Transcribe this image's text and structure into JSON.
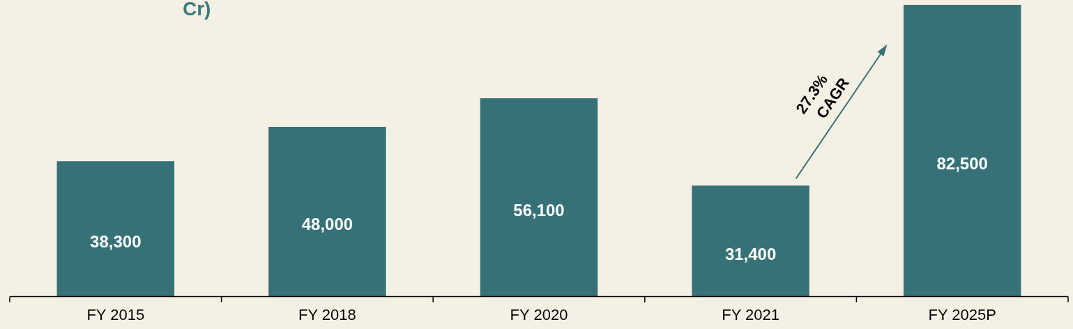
{
  "chart_data": {
    "type": "bar",
    "title": "Cr)",
    "categories": [
      "FY 2015",
      "FY 2018",
      "FY 2020",
      "FY 2021",
      "FY 2025P"
    ],
    "values": [
      38300,
      48000,
      56100,
      31400,
      82500
    ],
    "color": "#367177",
    "value_labels": [
      "38,300",
      "48,000",
      "56,100",
      "31,400",
      "82,500"
    ],
    "annotations": [
      "27.3% CAGR"
    ]
  }
}
